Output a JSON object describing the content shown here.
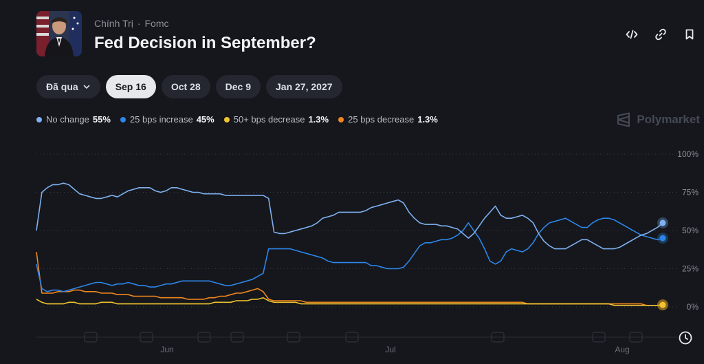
{
  "market": {
    "breadcrumb": [
      "Chính Trị",
      "Fomc"
    ],
    "title": "Fed Decision in September?"
  },
  "actions": [
    {
      "name": "embed-icon"
    },
    {
      "name": "link-icon"
    },
    {
      "name": "bookmark-icon"
    }
  ],
  "tabs": {
    "past_label": "Đã qua",
    "items": [
      {
        "label": "Sep 16",
        "active": true
      },
      {
        "label": "Oct 28",
        "active": false
      },
      {
        "label": "Dec 9",
        "active": false
      },
      {
        "label": "Jan 27, 2027",
        "active": false
      }
    ]
  },
  "brand": "Polymarket",
  "chart_data": {
    "type": "line",
    "x_tick_labels": [
      "Jun",
      "Jul",
      "Aug"
    ],
    "y_ticks": [
      "100%",
      "75%",
      "50%",
      "25%",
      "0%"
    ],
    "ylim": [
      0,
      100
    ],
    "grid": true,
    "legend_position": "top-left",
    "series": [
      {
        "name": "No change",
        "value_label": "55%",
        "color": "#7fb1f0",
        "values": [
          50,
          75,
          78,
          80,
          80,
          81,
          80,
          77,
          74,
          73,
          72,
          71,
          71,
          72,
          73,
          72,
          74,
          76,
          77,
          78,
          78,
          78,
          76,
          75,
          76,
          78,
          78,
          77,
          76,
          75,
          75,
          74,
          74,
          74,
          74,
          73,
          73,
          73,
          73,
          73,
          73,
          73,
          73,
          71,
          49,
          48,
          48,
          49,
          50,
          51,
          52,
          53,
          55,
          58,
          59,
          60,
          62,
          62,
          62,
          62,
          62,
          63,
          65,
          66,
          67,
          68,
          69,
          70,
          68,
          62,
          58,
          55,
          54,
          54,
          54,
          53,
          53,
          52,
          51,
          48,
          45,
          48,
          53,
          58,
          62,
          66,
          60,
          58,
          58,
          59,
          60,
          58,
          55,
          48,
          43,
          40,
          38,
          38,
          38,
          40,
          42,
          44,
          44,
          42,
          40,
          38,
          38,
          38,
          39,
          41,
          43,
          45,
          47,
          48,
          50,
          52,
          55
        ]
      },
      {
        "name": "25 bps increase",
        "value_label": "45%",
        "color": "#2d86e8",
        "values": [
          28,
          12,
          10,
          11,
          11,
          10,
          11,
          12,
          13,
          14,
          15,
          16,
          16,
          15,
          14,
          15,
          15,
          16,
          15,
          14,
          14,
          13,
          13,
          14,
          15,
          15,
          16,
          17,
          17,
          17,
          17,
          17,
          17,
          16,
          15,
          14,
          14,
          15,
          16,
          17,
          18,
          20,
          22,
          38,
          38,
          38,
          38,
          38,
          37,
          36,
          35,
          34,
          33,
          32,
          30,
          29,
          29,
          29,
          29,
          29,
          29,
          29,
          27,
          27,
          26,
          25,
          25,
          25,
          26,
          30,
          35,
          40,
          42,
          42,
          43,
          44,
          44,
          45,
          47,
          50,
          55,
          50,
          45,
          38,
          30,
          28,
          30,
          36,
          38,
          37,
          36,
          38,
          42,
          48,
          52,
          55,
          56,
          57,
          58,
          56,
          54,
          52,
          52,
          55,
          57,
          58,
          58,
          57,
          55,
          53,
          51,
          49,
          47,
          46,
          45,
          44,
          45
        ]
      },
      {
        "name": "50+ bps decrease",
        "value_label": "1.3%",
        "color": "#f0c330",
        "values": [
          5,
          3,
          2,
          2,
          2,
          2,
          3,
          3,
          2,
          2,
          2,
          2,
          3,
          3,
          3,
          2,
          2,
          2,
          2,
          2,
          2,
          2,
          2,
          2,
          2,
          2,
          2,
          2,
          2,
          2,
          2,
          2,
          2,
          3,
          3,
          3,
          3,
          4,
          4,
          4,
          5,
          5,
          6,
          4,
          3,
          3,
          3,
          3,
          3,
          2,
          2,
          2,
          2,
          2,
          2,
          2,
          2,
          2,
          2,
          2,
          2,
          2,
          2,
          2,
          2,
          2,
          2,
          2,
          2,
          2,
          2,
          2,
          2,
          2,
          2,
          2,
          2,
          2,
          2,
          2,
          2,
          2,
          2,
          2,
          2,
          2,
          2,
          2,
          2,
          2,
          2,
          2,
          2,
          2,
          2,
          2,
          2,
          2,
          2,
          2,
          2,
          2,
          2,
          2,
          2,
          2,
          2,
          1,
          1,
          1,
          1,
          1,
          1,
          1,
          1,
          1,
          1.3
        ]
      },
      {
        "name": "25 bps decrease",
        "value_label": "1.3%",
        "color": "#f0861e",
        "values": [
          36,
          9,
          9,
          9,
          10,
          10,
          10,
          11,
          11,
          10,
          10,
          10,
          9,
          9,
          9,
          8,
          8,
          8,
          7,
          7,
          7,
          7,
          7,
          6,
          6,
          6,
          6,
          6,
          5,
          5,
          5,
          5,
          6,
          6,
          7,
          7,
          8,
          9,
          9,
          10,
          11,
          12,
          10,
          5,
          4,
          4,
          4,
          4,
          4,
          4,
          3,
          3,
          3,
          3,
          3,
          3,
          3,
          3,
          3,
          3,
          3,
          3,
          3,
          3,
          3,
          3,
          3,
          3,
          3,
          3,
          3,
          3,
          3,
          3,
          3,
          3,
          3,
          3,
          3,
          3,
          3,
          3,
          3,
          3,
          3,
          3,
          3,
          3,
          3,
          3,
          3,
          2,
          2,
          2,
          2,
          2,
          2,
          2,
          2,
          2,
          2,
          2,
          2,
          2,
          2,
          2,
          2,
          2,
          2,
          2,
          2,
          2,
          2,
          1,
          1,
          1,
          1.3
        ]
      }
    ]
  }
}
